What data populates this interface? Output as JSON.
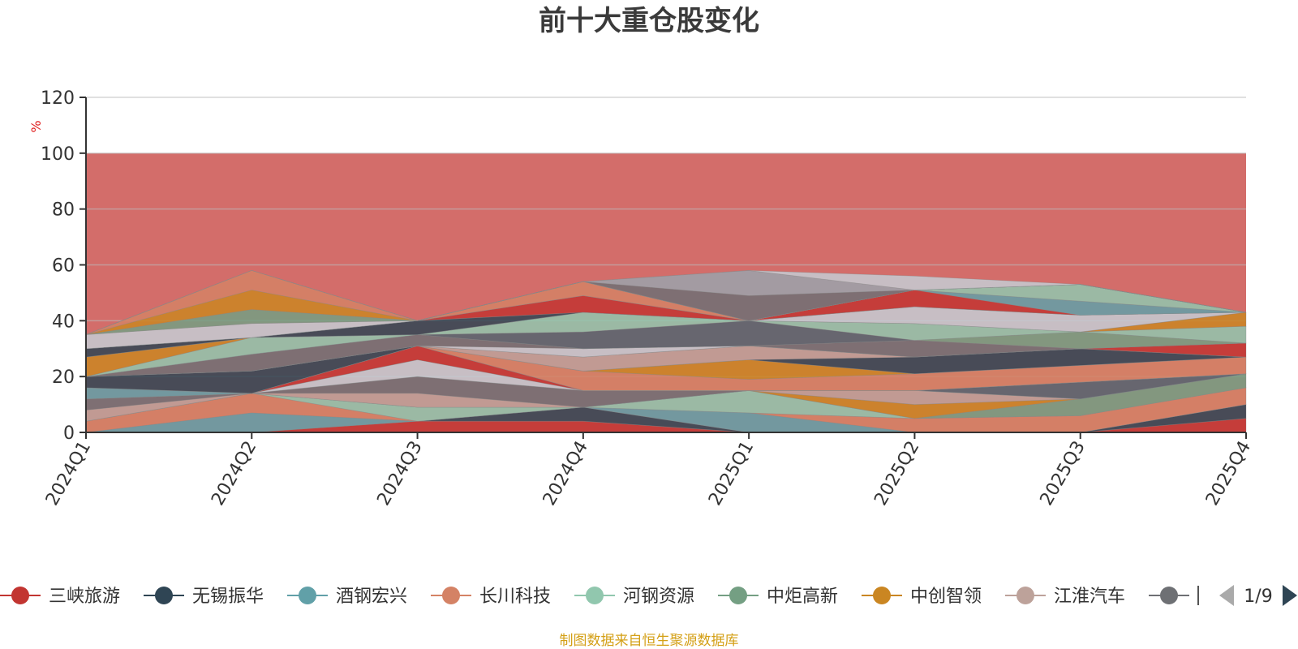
{
  "chart_data": {
    "type": "area",
    "title": "前十大重仓股变化",
    "y_unit": "%",
    "ylim": [
      0,
      120
    ],
    "y_ticks": [
      0,
      20,
      40,
      60,
      80,
      100,
      120
    ],
    "categories": [
      "2024Q1",
      "2024Q2",
      "2024Q3",
      "2024Q4",
      "2025Q1",
      "2025Q2",
      "2025Q3",
      "2025Q4"
    ],
    "grid": true,
    "legend_position": "bottom",
    "background_band": {
      "from": 0,
      "to": 100,
      "color": "#c23531"
    },
    "series": [
      {
        "name": "三峡旅游",
        "color": "#c23531",
        "values": [
          0,
          0,
          4,
          4,
          0,
          0,
          0,
          5
        ]
      },
      {
        "name": "无锡振华",
        "color": "#2f4554",
        "values": [
          0,
          0,
          0,
          5,
          0,
          0,
          0,
          5
        ]
      },
      {
        "name": "酒钢宏兴",
        "color": "#61a0a8",
        "values": [
          0,
          7,
          0,
          0,
          7,
          0,
          0,
          0
        ]
      },
      {
        "name": "长川科技",
        "color": "#d48265",
        "values": [
          4,
          7,
          0,
          0,
          0,
          5,
          6,
          6
        ]
      },
      {
        "name": "河钢资源",
        "color": "#91c7ae",
        "values": [
          0,
          0,
          5,
          0,
          8,
          0,
          0,
          0
        ]
      },
      {
        "name": "中炬高新",
        "color": "#749f83",
        "values": [
          0,
          0,
          0,
          0,
          0,
          0,
          6,
          5
        ]
      },
      {
        "name": "中创智领",
        "color": "#ca8622",
        "values": [
          0,
          0,
          0,
          0,
          0,
          5,
          0,
          0
        ]
      },
      {
        "name": "江淮汽车",
        "color": "#bda29a",
        "values": [
          4,
          0,
          5,
          0,
          0,
          5,
          0,
          0
        ]
      },
      {
        "name": "",
        "color": "#6e7074",
        "values": [
          4,
          0,
          6,
          6,
          0,
          0,
          0,
          0
        ]
      },
      {
        "name": "",
        "color": "#546570",
        "values": [
          0,
          0,
          0,
          0,
          0,
          0,
          6,
          0
        ]
      },
      {
        "name": "",
        "color": "#c4ccd3",
        "values": [
          0,
          0,
          6,
          0,
          0,
          0,
          0,
          0
        ]
      },
      {
        "name": "",
        "color": "#c23531",
        "values": [
          0,
          0,
          5,
          0,
          0,
          0,
          0,
          0
        ]
      },
      {
        "name": "",
        "color": "#61a0a8",
        "values": [
          4,
          0,
          0,
          0,
          0,
          0,
          0,
          0
        ]
      },
      {
        "name": "",
        "color": "#d48265",
        "values": [
          0,
          0,
          0,
          7,
          4,
          6,
          6,
          6
        ]
      },
      {
        "name": "",
        "color": "#ca8622",
        "values": [
          0,
          0,
          0,
          0,
          7,
          0,
          0,
          0
        ]
      },
      {
        "name": "",
        "color": "#2f4554",
        "values": [
          4,
          8,
          0,
          0,
          0,
          6,
          6,
          0
        ]
      },
      {
        "name": "",
        "color": "#bda29a",
        "values": [
          0,
          0,
          0,
          5,
          5,
          0,
          0,
          0
        ]
      },
      {
        "name": "",
        "color": "#c23531",
        "values": [
          0,
          0,
          0,
          0,
          0,
          0,
          0,
          5
        ]
      },
      {
        "name": "",
        "color": "#c4ccd3",
        "values": [
          0,
          0,
          0,
          3,
          0,
          0,
          0,
          0
        ]
      },
      {
        "name": "",
        "color": "#6e7074",
        "values": [
          0,
          6,
          4,
          0,
          0,
          6,
          0,
          0
        ]
      },
      {
        "name": "",
        "color": "#749f83",
        "values": [
          0,
          0,
          0,
          0,
          0,
          0,
          6,
          0
        ]
      },
      {
        "name": "",
        "color": "#546570",
        "values": [
          0,
          0,
          0,
          6,
          9,
          0,
          0,
          0
        ]
      },
      {
        "name": "",
        "color": "#91c7ae",
        "values": [
          0,
          6,
          0,
          7,
          0,
          6,
          0,
          6
        ]
      },
      {
        "name": "",
        "color": "#ca8622",
        "values": [
          7,
          0,
          0,
          0,
          0,
          0,
          0,
          5
        ]
      },
      {
        "name": "",
        "color": "#c4ccd3",
        "values": [
          0,
          0,
          0,
          0,
          0,
          6,
          6,
          0
        ]
      },
      {
        "name": "",
        "color": "#bda29a",
        "values": [
          0,
          0,
          0,
          0,
          0,
          0,
          0,
          0
        ]
      },
      {
        "name": "",
        "color": "#2f4554",
        "values": [
          3,
          0,
          5,
          0,
          0,
          0,
          0,
          0
        ]
      },
      {
        "name": "",
        "color": "#c23531",
        "values": [
          0,
          0,
          0,
          6,
          0,
          6,
          0,
          0
        ]
      },
      {
        "name": "",
        "color": "#61a0a8",
        "values": [
          0,
          0,
          0,
          0,
          0,
          0,
          5,
          0
        ]
      },
      {
        "name": "",
        "color": "#d48265",
        "values": [
          0,
          0,
          0,
          5,
          0,
          0,
          0,
          0
        ]
      },
      {
        "name": "",
        "color": "#91c7ae",
        "values": [
          0,
          0,
          0,
          0,
          0,
          0,
          6,
          0
        ]
      },
      {
        "name": "",
        "color": "#c4ccd3",
        "values": [
          5,
          5,
          0,
          0,
          0,
          0,
          0,
          0
        ]
      },
      {
        "name": "",
        "color": "#749f83",
        "values": [
          0,
          5,
          0,
          0,
          0,
          0,
          0,
          0
        ]
      },
      {
        "name": "",
        "color": "#ca8622",
        "values": [
          0,
          7,
          0,
          0,
          0,
          0,
          0,
          0
        ]
      },
      {
        "name": "",
        "color": "#d48265",
        "values": [
          0,
          7,
          0,
          0,
          0,
          0,
          0,
          0
        ]
      },
      {
        "name": "",
        "color": "#6e7074",
        "values": [
          0,
          0,
          0,
          0,
          9,
          0,
          0,
          0
        ]
      },
      {
        "name": "",
        "color": "#9aa3ab",
        "values": [
          0,
          0,
          0,
          0,
          9,
          0,
          0,
          0
        ]
      },
      {
        "name": "",
        "color": "#c4ccd3",
        "values": [
          0,
          0,
          0,
          0,
          0,
          5,
          0,
          0
        ]
      }
    ]
  },
  "legend": {
    "items": [
      {
        "name": "三峡旅游",
        "color": "#c23531"
      },
      {
        "name": "无锡振华",
        "color": "#2f4554"
      },
      {
        "name": "酒钢宏兴",
        "color": "#61a0a8"
      },
      {
        "name": "长川科技",
        "color": "#d48265"
      },
      {
        "name": "河钢资源",
        "color": "#91c7ae"
      },
      {
        "name": "中炬高新",
        "color": "#749f83"
      },
      {
        "name": "中创智领",
        "color": "#ca8622"
      },
      {
        "name": "江淮汽车",
        "color": "#bda29a"
      }
    ],
    "clipped_item": {
      "name": "中",
      "color": "#6e7074"
    },
    "page_indicator": "1/9",
    "prev_icon": "triangle-left-icon",
    "next_icon": "triangle-right-icon"
  },
  "source_note": "制图数据来自恒生聚源数据库"
}
